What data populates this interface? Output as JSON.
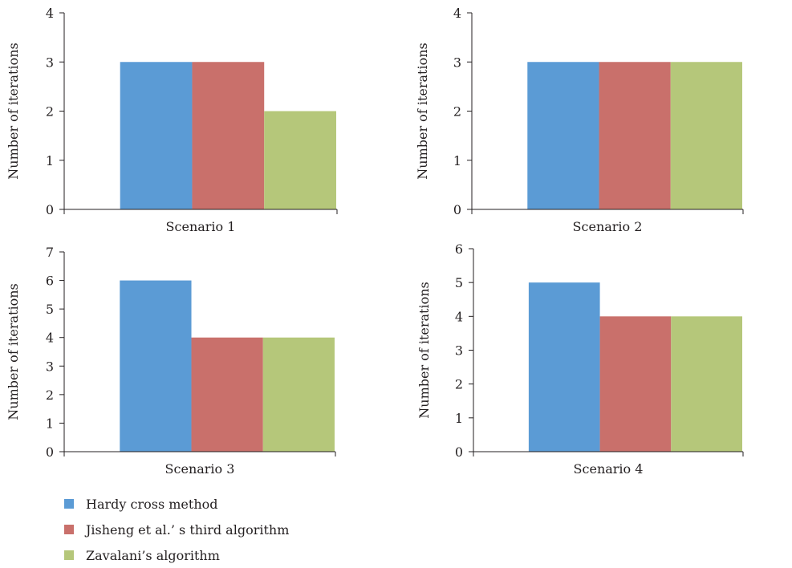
{
  "colors": [
    "#5b9bd5",
    "#c9706b",
    "#b5c77a"
  ],
  "legend": [
    {
      "label": "Hardy cross method",
      "color": "#5b9bd5"
    },
    {
      "label": "Jisheng et al.’ s third algorithm",
      "color": "#c9706b"
    },
    {
      "label": "Zavalani’s algorithm",
      "color": "#b5c77a"
    }
  ],
  "chart_data": [
    {
      "type": "bar",
      "categories": [
        "Scenario 1"
      ],
      "series": [
        {
          "name": "Hardy cross method",
          "values": [
            3
          ]
        },
        {
          "name": "Jisheng et al.’ s third algorithm",
          "values": [
            3
          ]
        },
        {
          "name": "Zavalani’s algorithm",
          "values": [
            2
          ]
        }
      ],
      "ylabel": "Number of iterations",
      "ylim": [
        0,
        4
      ],
      "yticks": [
        "0",
        "1",
        "2",
        "3",
        "4"
      ],
      "grid": false
    },
    {
      "type": "bar",
      "categories": [
        "Scenario 2"
      ],
      "series": [
        {
          "name": "Hardy cross method",
          "values": [
            3
          ]
        },
        {
          "name": "Jisheng et al.’ s third algorithm",
          "values": [
            3
          ]
        },
        {
          "name": "Zavalani’s algorithm",
          "values": [
            3
          ]
        }
      ],
      "ylabel": "Number of iterations",
      "ylim": [
        0,
        4
      ],
      "yticks": [
        "0",
        "1",
        "2",
        "3",
        "4"
      ],
      "grid": false
    },
    {
      "type": "bar",
      "categories": [
        "Scenario 3"
      ],
      "series": [
        {
          "name": "Hardy cross method",
          "values": [
            6
          ]
        },
        {
          "name": "Jisheng et al.’ s third algorithm",
          "values": [
            4
          ]
        },
        {
          "name": "Zavalani’s algorithm",
          "values": [
            4
          ]
        }
      ],
      "ylabel": "Number of iterations",
      "ylim": [
        0,
        7
      ],
      "yticks": [
        "0",
        "1",
        "2",
        "3",
        "4",
        "5",
        "6",
        "7"
      ],
      "grid": false
    },
    {
      "type": "bar",
      "categories": [
        "Scenario 4"
      ],
      "series": [
        {
          "name": "Hardy cross method",
          "values": [
            5
          ]
        },
        {
          "name": "Jisheng et al.’ s third algorithm",
          "values": [
            4
          ]
        },
        {
          "name": "Zavalani’s algorithm",
          "values": [
            4
          ]
        }
      ],
      "ylabel": "Number of iterations",
      "ylim": [
        0,
        6
      ],
      "yticks": [
        "0",
        "1",
        "2",
        "3",
        "4",
        "5",
        "6"
      ],
      "grid": false
    }
  ]
}
